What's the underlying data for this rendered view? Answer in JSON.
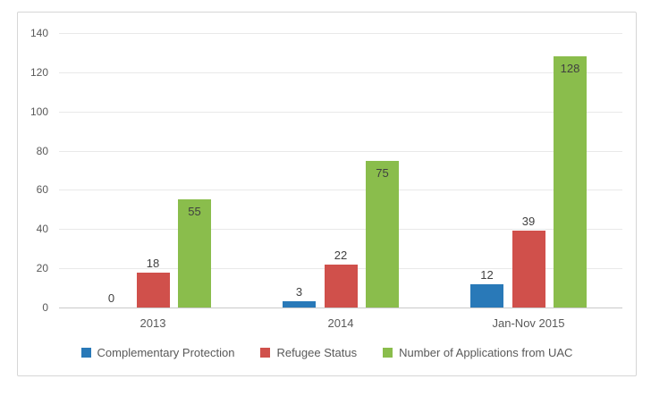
{
  "chart_data": {
    "type": "bar",
    "title": "",
    "xlabel": "",
    "ylabel": "",
    "categories": [
      "2013",
      "2014",
      "Jan-Nov 2015"
    ],
    "series": [
      {
        "name": "Complementary Protection",
        "color": "#2979b8",
        "values": [
          0,
          3,
          12
        ],
        "label_position": "outside"
      },
      {
        "name": "Refugee Status",
        "color": "#d0504b",
        "values": [
          18,
          22,
          39
        ],
        "label_position": "outside"
      },
      {
        "name": "Number of Applications from UAC",
        "color": "#8abd4c",
        "values": [
          55,
          75,
          128
        ],
        "label_position": "inside"
      }
    ],
    "ylim": [
      0,
      140
    ],
    "ytick_step": 20,
    "yticks": [
      0,
      20,
      40,
      60,
      80,
      100,
      120,
      140
    ],
    "grid": true,
    "legend_position": "bottom"
  },
  "theme": {
    "figure_border": "#d6d6d6",
    "gridline": "#e9e9e9",
    "axis_line": "#c9c9c9",
    "tick_text": "#595959",
    "value_text": "#404040",
    "background": "#ffffff"
  }
}
